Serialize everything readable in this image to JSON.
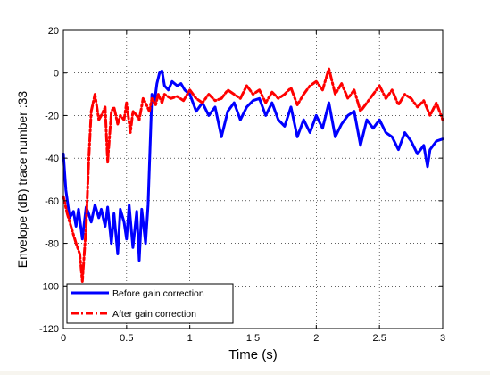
{
  "chart_data": {
    "type": "line",
    "xlabel": "Time (s)",
    "ylabel": "Envelope (dB) trace number :33",
    "xlim": [
      0,
      3
    ],
    "ylim": [
      -120,
      20
    ],
    "xticks": [
      0,
      0.5,
      1,
      1.5,
      2,
      2.5,
      3
    ],
    "xtick_labels": [
      "0",
      "0.5",
      "1",
      "1.5",
      "2",
      "2.5",
      "3"
    ],
    "yticks": [
      -120,
      -100,
      -80,
      -60,
      -40,
      -20,
      0,
      20
    ],
    "ytick_labels": [
      "-120",
      "-100",
      "-80",
      "-60",
      "-40",
      "-20",
      "0",
      "20"
    ],
    "grid": true,
    "legend_position": "bottom-left",
    "series": [
      {
        "name": "Before gain correction",
        "color": "#0000ff",
        "line_style": "solid",
        "x": [
          0,
          0.02,
          0.05,
          0.08,
          0.1,
          0.12,
          0.15,
          0.18,
          0.2,
          0.22,
          0.25,
          0.28,
          0.3,
          0.33,
          0.35,
          0.38,
          0.4,
          0.43,
          0.45,
          0.48,
          0.5,
          0.52,
          0.55,
          0.58,
          0.6,
          0.62,
          0.65,
          0.67,
          0.68,
          0.7,
          0.72,
          0.74,
          0.76,
          0.78,
          0.8,
          0.83,
          0.86,
          0.9,
          0.93,
          0.96,
          1.0,
          1.05,
          1.1,
          1.15,
          1.2,
          1.25,
          1.3,
          1.35,
          1.4,
          1.45,
          1.5,
          1.55,
          1.6,
          1.65,
          1.7,
          1.75,
          1.8,
          1.85,
          1.9,
          1.95,
          2.0,
          2.05,
          2.1,
          2.15,
          2.2,
          2.25,
          2.3,
          2.35,
          2.4,
          2.45,
          2.5,
          2.55,
          2.6,
          2.65,
          2.7,
          2.75,
          2.8,
          2.85,
          2.88,
          2.9,
          2.95,
          3.0
        ],
        "y": [
          -38,
          -55,
          -68,
          -65,
          -72,
          -64,
          -78,
          -63,
          -66,
          -70,
          -62,
          -68,
          -64,
          -72,
          -63,
          -80,
          -66,
          -85,
          -64,
          -70,
          -78,
          -62,
          -82,
          -65,
          -88,
          -64,
          -80,
          -62,
          -45,
          -10,
          -14,
          -5,
          0,
          1,
          -6,
          -8,
          -4,
          -6,
          -5,
          -8,
          -10,
          -18,
          -14,
          -20,
          -16,
          -30,
          -18,
          -14,
          -22,
          -16,
          -13,
          -12,
          -20,
          -14,
          -22,
          -25,
          -16,
          -30,
          -22,
          -28,
          -20,
          -26,
          -14,
          -30,
          -24,
          -20,
          -18,
          -34,
          -22,
          -26,
          -22,
          -28,
          -30,
          -36,
          -28,
          -32,
          -38,
          -34,
          -44,
          -36,
          -32,
          -31
        ]
      },
      {
        "name": "After gain correction",
        "color": "#ff0000",
        "line_style": "dash-dot",
        "x": [
          0,
          0.03,
          0.06,
          0.1,
          0.13,
          0.15,
          0.18,
          0.2,
          0.22,
          0.25,
          0.28,
          0.3,
          0.33,
          0.35,
          0.38,
          0.4,
          0.43,
          0.45,
          0.48,
          0.5,
          0.53,
          0.55,
          0.58,
          0.6,
          0.63,
          0.65,
          0.68,
          0.7,
          0.73,
          0.75,
          0.78,
          0.8,
          0.85,
          0.9,
          0.95,
          1.0,
          1.05,
          1.1,
          1.15,
          1.2,
          1.25,
          1.3,
          1.35,
          1.4,
          1.45,
          1.5,
          1.55,
          1.6,
          1.65,
          1.7,
          1.75,
          1.8,
          1.85,
          1.9,
          1.95,
          2.0,
          2.05,
          2.1,
          2.15,
          2.2,
          2.25,
          2.3,
          2.35,
          2.4,
          2.45,
          2.5,
          2.55,
          2.6,
          2.65,
          2.7,
          2.75,
          2.8,
          2.85,
          2.9,
          2.95,
          3.0
        ],
        "y": [
          -58,
          -66,
          -72,
          -80,
          -85,
          -98,
          -72,
          -42,
          -18,
          -10,
          -22,
          -20,
          -16,
          -42,
          -18,
          -16,
          -24,
          -20,
          -22,
          -14,
          -28,
          -18,
          -20,
          -22,
          -12,
          -14,
          -18,
          -12,
          -15,
          -10,
          -14,
          -10,
          -12,
          -11,
          -13,
          -8,
          -12,
          -14,
          -10,
          -13,
          -12,
          -8,
          -10,
          -12,
          -6,
          -10,
          -8,
          -14,
          -9,
          -12,
          -10,
          -7,
          -15,
          -10,
          -6,
          -4,
          -8,
          2,
          -10,
          -5,
          -12,
          -8,
          -18,
          -14,
          -10,
          -6,
          -12,
          -8,
          -15,
          -10,
          -12,
          -16,
          -13,
          -20,
          -14,
          -22
        ]
      }
    ]
  }
}
